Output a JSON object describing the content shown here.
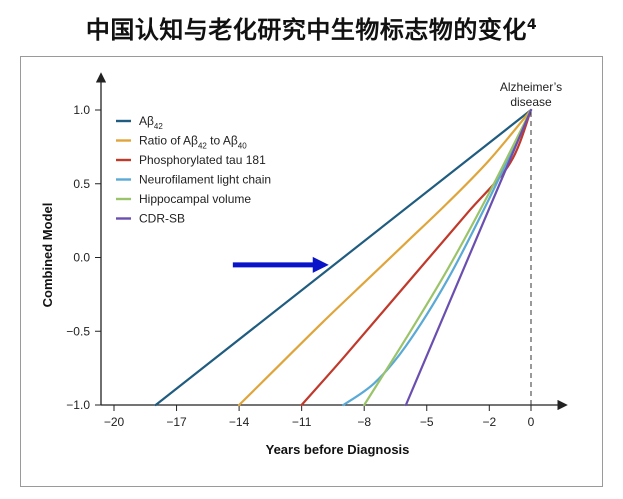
{
  "page_title": "中国认知与老化研究中生物标志物的变化",
  "page_title_ref": "4",
  "chart_data": {
    "type": "line",
    "title": "中国认知与老化研究中生物标志物的变化",
    "xlabel": "Years before Diagnosis",
    "ylabel": "Combined Model",
    "xlim": [
      -21,
      0.8
    ],
    "ylim": [
      -1.0,
      1.2
    ],
    "x_ticks": [
      -20,
      -17,
      -14,
      -11,
      -8,
      -5,
      -2,
      0
    ],
    "x_tick_labels": [
      "−20",
      "−17",
      "−14",
      "−11",
      "−8",
      "−5",
      "−2",
      "0"
    ],
    "y_ticks": [
      1.0,
      0.5,
      0.0,
      -0.5,
      -1.0
    ],
    "y_tick_labels": [
      "1.0",
      "0.5",
      "0.0",
      "−0.5",
      "−1.0"
    ],
    "annotation": {
      "line1": "Alzheimer’s",
      "line2": "disease",
      "x": 0
    },
    "arrow": {
      "from": [
        -14.3,
        -0.05
      ],
      "to": [
        -9.7,
        -0.05
      ],
      "color": "#0a14c8"
    },
    "series": [
      {
        "name": "Aβ42",
        "label_main": "Aβ",
        "label_sub": "42",
        "color": "#1f5c80",
        "points": [
          [
            -18,
            -1.0
          ],
          [
            0,
            1.0
          ]
        ]
      },
      {
        "name": "Ratio of Aβ42 to Aβ40",
        "label_parts": [
          "Ratio of Aβ",
          "42",
          " to Aβ",
          "40"
        ],
        "color": "#e0a53a",
        "points": [
          [
            -14,
            -1.0
          ],
          [
            -12,
            -0.72
          ],
          [
            -10,
            -0.44
          ],
          [
            -8,
            -0.17
          ],
          [
            -6,
            0.1
          ],
          [
            -4,
            0.37
          ],
          [
            -2,
            0.66
          ],
          [
            0,
            1.0
          ]
        ]
      },
      {
        "name": "Phosphorylated tau 181",
        "color": "#c0392b",
        "points": [
          [
            -11,
            -1.0
          ],
          [
            -9,
            -0.68
          ],
          [
            -7,
            -0.35
          ],
          [
            -5,
            -0.02
          ],
          [
            -3,
            0.31
          ],
          [
            -1,
            0.64
          ],
          [
            0,
            1.0
          ]
        ]
      },
      {
        "name": "Neurofilament light chain",
        "color": "#5aa9d6",
        "points": [
          [
            -9,
            -1.0
          ],
          [
            -7.5,
            -0.85
          ],
          [
            -6,
            -0.6
          ],
          [
            -4,
            -0.15
          ],
          [
            -2,
            0.4
          ],
          [
            0,
            1.0
          ]
        ]
      },
      {
        "name": "Hippocampal volume",
        "color": "#9bc46a",
        "points": [
          [
            -8,
            -1.0
          ],
          [
            -6,
            -0.55
          ],
          [
            -4,
            -0.08
          ],
          [
            -2,
            0.44
          ],
          [
            0,
            1.0
          ]
        ]
      },
      {
        "name": "CDR-SB",
        "color": "#6a4fb0",
        "points": [
          [
            -6,
            -1.0
          ],
          [
            0,
            1.0
          ]
        ]
      }
    ]
  }
}
